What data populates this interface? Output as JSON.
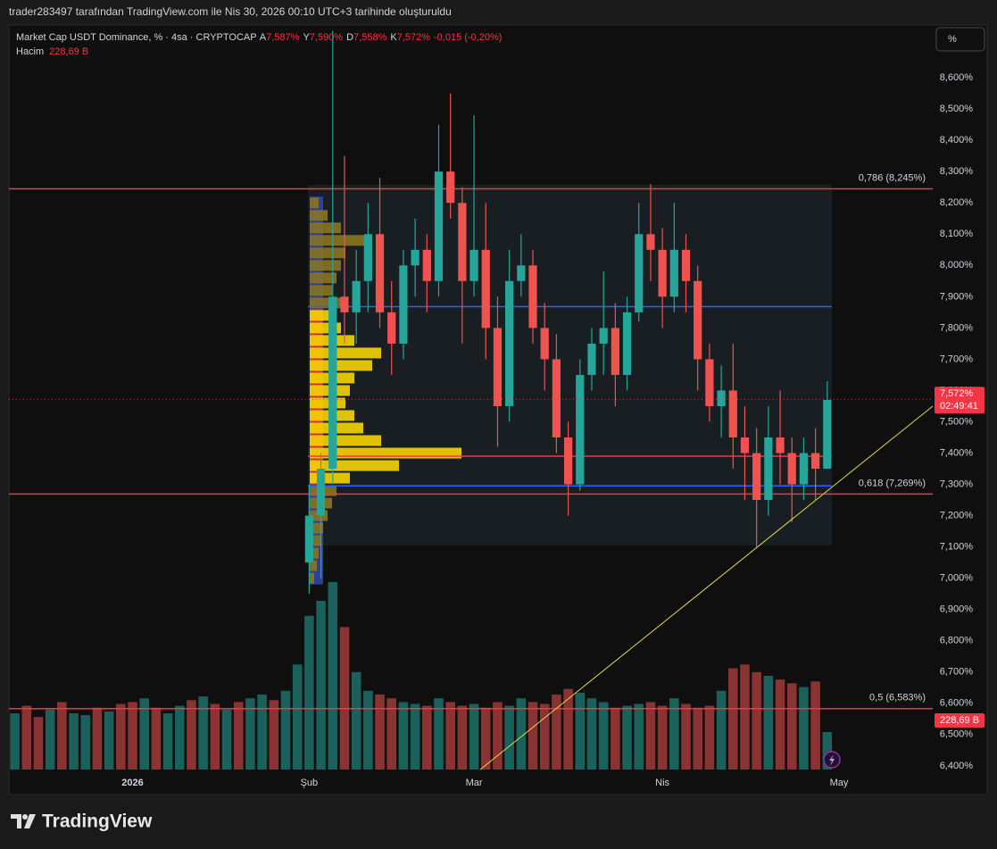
{
  "header": "trader283497 tarafından TradingView.com ile Nis 30, 2026 00:10 UTC+3 tarihinde oluşturuldu",
  "footer": "TradingView",
  "scale_button": "%",
  "chart_data": {
    "type": "candlestick",
    "title": "Market Cap USDT Dominance, % · 4sa · CRYPTOCAP",
    "ohlc_legend": [
      {
        "key": "A",
        "value": 7.587,
        "label": "7,587%"
      },
      {
        "key": "Y",
        "value": 7.59,
        "label": "7,590%"
      },
      {
        "key": "D",
        "value": 7.558,
        "label": "7,558%"
      },
      {
        "key": "K",
        "value": 7.572,
        "label": "7,572%"
      }
    ],
    "change_label": "-0,015 (-0,20%)",
    "last_price": {
      "value": 7.572,
      "label": "7,572%",
      "countdown": "02:49:41",
      "color": "#f23645"
    },
    "categories": [
      null,
      null,
      null,
      null,
      null,
      null,
      null,
      null,
      null,
      null,
      "2026",
      null,
      null,
      null,
      null,
      null,
      null,
      null,
      null,
      null,
      null,
      null,
      null,
      null,
      null,
      "Şub",
      null,
      null,
      null,
      null,
      null,
      null,
      null,
      null,
      null,
      null,
      null,
      null,
      null,
      "Mar",
      null,
      null,
      null,
      null,
      null,
      null,
      null,
      null,
      null,
      null,
      null,
      null,
      null,
      null,
      null,
      "Nis",
      null,
      null,
      null,
      null,
      null,
      null,
      null,
      null,
      null,
      null,
      null,
      null,
      null,
      null,
      "May"
    ],
    "candles": {
      "up_color": "#26a69a",
      "down_color": "#ef5350",
      "open": [
        null,
        null,
        null,
        null,
        null,
        null,
        null,
        null,
        null,
        null,
        null,
        null,
        null,
        null,
        null,
        null,
        null,
        null,
        null,
        null,
        null,
        null,
        null,
        null,
        null,
        7.05,
        7.2,
        7.35,
        7.9,
        7.85,
        7.95,
        8.1,
        7.85,
        7.75,
        8.0,
        8.05,
        7.95,
        8.3,
        8.2,
        7.95,
        8.05,
        7.8,
        7.55,
        7.95,
        8.0,
        7.8,
        7.7,
        7.45,
        7.3,
        7.65,
        7.75,
        7.8,
        7.65,
        7.85,
        8.1,
        8.05,
        7.9,
        8.05,
        7.95,
        7.7,
        7.55,
        7.6,
        7.45,
        7.4,
        7.25,
        7.45,
        7.4,
        7.3,
        7.4,
        7.35,
        null
      ],
      "high": [
        null,
        null,
        null,
        null,
        null,
        null,
        null,
        null,
        null,
        null,
        null,
        null,
        null,
        null,
        null,
        null,
        null,
        null,
        null,
        null,
        null,
        null,
        null,
        null,
        null,
        7.3,
        7.4,
        8.75,
        8.35,
        8.05,
        8.2,
        8.28,
        7.95,
        8.05,
        8.15,
        8.1,
        8.45,
        8.55,
        8.25,
        8.48,
        8.2,
        7.9,
        8.05,
        8.1,
        8.05,
        7.88,
        7.78,
        7.5,
        7.7,
        7.8,
        7.98,
        7.88,
        7.9,
        8.2,
        8.26,
        8.12,
        8.2,
        8.1,
        8.0,
        7.75,
        7.68,
        7.75,
        7.55,
        7.48,
        7.55,
        7.6,
        7.45,
        7.45,
        7.48,
        7.63,
        null
      ],
      "low": [
        null,
        null,
        null,
        null,
        null,
        null,
        null,
        null,
        null,
        null,
        null,
        null,
        null,
        null,
        null,
        null,
        null,
        null,
        null,
        null,
        null,
        null,
        null,
        null,
        null,
        6.95,
        7.0,
        7.3,
        7.75,
        7.75,
        7.85,
        7.8,
        7.65,
        7.7,
        7.9,
        7.85,
        7.9,
        8.15,
        7.75,
        7.9,
        7.7,
        7.42,
        7.5,
        7.9,
        7.75,
        7.6,
        7.4,
        7.2,
        7.28,
        7.6,
        7.65,
        7.55,
        7.6,
        7.82,
        7.95,
        7.8,
        7.85,
        7.85,
        7.6,
        7.5,
        7.45,
        7.35,
        7.25,
        7.1,
        7.2,
        7.3,
        7.18,
        7.25,
        7.25,
        7.35,
        null
      ],
      "close": [
        null,
        null,
        null,
        null,
        null,
        null,
        null,
        null,
        null,
        null,
        null,
        null,
        null,
        null,
        null,
        null,
        null,
        null,
        null,
        null,
        null,
        null,
        null,
        null,
        null,
        7.2,
        7.35,
        7.9,
        7.85,
        7.95,
        8.1,
        7.85,
        7.75,
        8.0,
        8.05,
        7.95,
        8.3,
        8.2,
        7.95,
        8.05,
        7.8,
        7.55,
        7.95,
        8.0,
        7.8,
        7.7,
        7.45,
        7.3,
        7.65,
        7.75,
        7.8,
        7.65,
        7.85,
        8.1,
        8.05,
        7.9,
        8.05,
        7.95,
        7.7,
        7.55,
        7.6,
        7.45,
        7.4,
        7.25,
        7.45,
        7.4,
        7.3,
        7.4,
        7.35,
        7.57,
        null
      ]
    },
    "volume": {
      "name": "Hacim",
      "last_label": "228,69 B",
      "color": "#f23645",
      "values": [
        300,
        340,
        280,
        320,
        360,
        300,
        290,
        330,
        310,
        350,
        360,
        380,
        330,
        300,
        340,
        370,
        390,
        350,
        320,
        360,
        380,
        400,
        370,
        420,
        560,
        820,
        900,
        1000,
        760,
        520,
        420,
        400,
        380,
        360,
        350,
        340,
        380,
        360,
        340,
        350,
        330,
        360,
        340,
        380,
        360,
        350,
        400,
        430,
        410,
        380,
        360,
        330,
        340,
        350,
        360,
        340,
        380,
        350,
        330,
        340,
        420,
        540,
        560,
        520,
        500,
        480,
        460,
        440,
        470,
        200,
        null
      ],
      "colors": [
        "#26a69a",
        "#ef5350",
        "#ef5350",
        "#26a69a",
        "#ef5350",
        "#26a69a",
        "#26a69a",
        "#ef5350",
        "#26a69a",
        "#ef5350",
        "#ef5350",
        "#26a69a",
        "#ef5350",
        "#26a69a",
        "#26a69a",
        "#ef5350",
        "#26a69a",
        "#ef5350",
        "#26a69a",
        "#ef5350",
        "#26a69a",
        "#26a69a",
        "#ef5350",
        "#26a69a",
        "#26a69a",
        "#26a69a",
        "#26a69a",
        "#26a69a",
        "#ef5350",
        "#26a69a",
        "#26a69a",
        "#ef5350",
        "#ef5350",
        "#26a69a",
        "#26a69a",
        "#ef5350",
        "#26a69a",
        "#ef5350",
        "#ef5350",
        "#26a69a",
        "#ef5350",
        "#ef5350",
        "#26a69a",
        "#26a69a",
        "#ef5350",
        "#ef5350",
        "#ef5350",
        "#ef5350",
        "#26a69a",
        "#26a69a",
        "#26a69a",
        "#ef5350",
        "#26a69a",
        "#26a69a",
        "#ef5350",
        "#ef5350",
        "#26a69a",
        "#ef5350",
        "#ef5350",
        "#ef5350",
        "#26a69a",
        "#ef5350",
        "#ef5350",
        "#ef5350",
        "#26a69a",
        "#ef5350",
        "#ef5350",
        "#26a69a",
        "#ef5350",
        "#26a69a",
        null
      ]
    },
    "levels": [
      {
        "value": 8.245,
        "label": "0,786 (8,245%)",
        "color": "#f23645"
      },
      {
        "value": 7.269,
        "label": "0,618 (7,269%)",
        "color": "#f23645"
      },
      {
        "value": 6.583,
        "label": "0,5 (6,583%)",
        "color": "#f23645"
      }
    ],
    "volume_profile": {
      "levels": [
        7.0,
        7.04,
        7.08,
        7.12,
        7.16,
        7.2,
        7.24,
        7.28,
        7.32,
        7.36,
        7.4,
        7.44,
        7.48,
        7.52,
        7.56,
        7.6,
        7.64,
        7.68,
        7.72,
        7.76,
        7.8,
        7.84,
        7.88,
        7.92,
        7.96,
        8.0,
        8.04,
        8.08,
        8.12,
        8.16,
        8.2
      ],
      "values": [
        5,
        8,
        10,
        12,
        15,
        20,
        25,
        30,
        45,
        100,
        170,
        80,
        60,
        50,
        40,
        45,
        50,
        70,
        80,
        50,
        35,
        30,
        35,
        25,
        30,
        35,
        40,
        65,
        35,
        20,
        10
      ],
      "vah": 7.868,
      "val": 7.295,
      "poc": 7.39,
      "va_color": "#f5d400",
      "out_color": "#8a7420",
      "vah_color": "#2962ff",
      "poc_color": "#f23645"
    },
    "ylim": [
      6.314,
      8.763
    ],
    "yticks": [
      {
        "value": 6.4,
        "label": "6,400%"
      },
      {
        "value": 6.5,
        "label": "6,500%"
      },
      {
        "value": 6.6,
        "label": "6,600%"
      },
      {
        "value": 6.7,
        "label": "6,700%"
      },
      {
        "value": 6.8,
        "label": "6,800%"
      },
      {
        "value": 6.9,
        "label": "6,900%"
      },
      {
        "value": 7.0,
        "label": "7,000%"
      },
      {
        "value": 7.1,
        "label": "7,100%"
      },
      {
        "value": 7.2,
        "label": "7,200%"
      },
      {
        "value": 7.3,
        "label": "7,300%"
      },
      {
        "value": 7.4,
        "label": "7,400%"
      },
      {
        "value": 7.5,
        "label": "7,500%"
      },
      {
        "value": 7.6,
        "label": "7,600%"
      },
      {
        "value": 7.7,
        "label": "7,700%"
      },
      {
        "value": 7.8,
        "label": "7,800%"
      },
      {
        "value": 7.9,
        "label": "7,900%"
      },
      {
        "value": 8.0,
        "label": "8,000%"
      },
      {
        "value": 8.1,
        "label": "8,100%"
      },
      {
        "value": 8.2,
        "label": "8,200%"
      },
      {
        "value": 8.3,
        "label": "8,300%"
      },
      {
        "value": 8.4,
        "label": "8,400%"
      },
      {
        "value": 8.5,
        "label": "8,500%"
      },
      {
        "value": 8.6,
        "label": "8,600%"
      }
    ],
    "grid": false
  }
}
